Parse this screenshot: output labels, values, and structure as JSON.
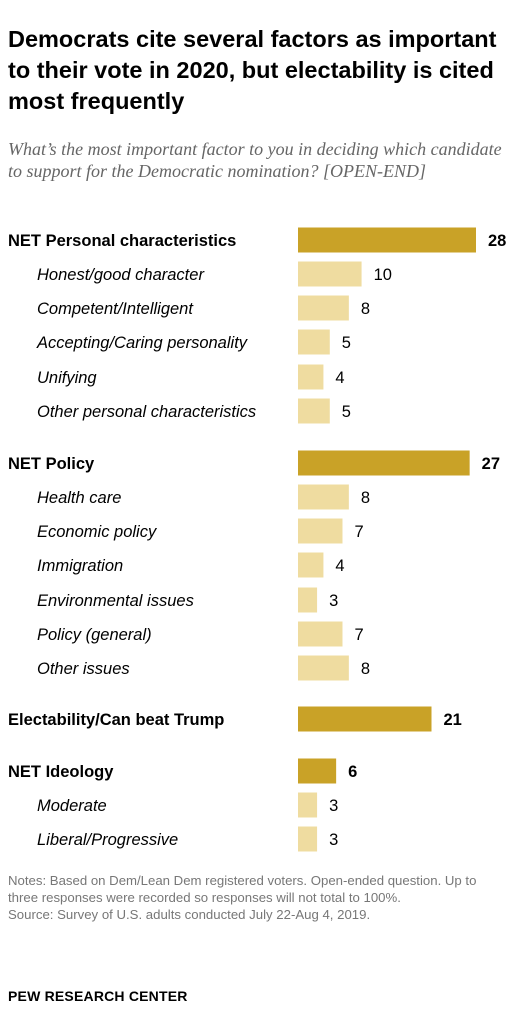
{
  "header": {
    "title": "Democrats cite several factors as important to their vote in 2020, but electability is cited most frequently",
    "subtitle": "What’s the most important factor to you in deciding which candidate to support for the Democratic nomination? [OPEN-END]"
  },
  "notes": {
    "line1": "Notes: Based on Dem/Lean Dem registered voters. Open-ended question. Up to three responses were recorded so responses will not total to 100%.",
    "source": "Source: Survey of U.S. adults conducted July 22-Aug 4, 2019."
  },
  "footer": {
    "org": "PEW RESEARCH CENTER"
  },
  "colors": {
    "net_bar": "#c9a227",
    "sub_bar": "#efdca0",
    "text": "#000000"
  },
  "chart_data": {
    "type": "bar",
    "orientation": "horizontal",
    "xlim": [
      0,
      28
    ],
    "categories": [
      "NET Personal characteristics",
      "Honest/good character",
      "Competent/Intelligent",
      "Accepting/Caring personality",
      "Unifying",
      "Other personal characteristics",
      "NET Policy",
      "Health care",
      "Economic policy",
      "Immigration",
      "Environmental issues",
      "Policy (general)",
      "Other issues",
      "Electability/Can beat Trump",
      "NET Ideology",
      "Moderate",
      "Liberal/Progressive"
    ],
    "values": [
      28,
      10,
      8,
      5,
      4,
      5,
      27,
      8,
      7,
      4,
      3,
      7,
      8,
      21,
      6,
      3,
      3
    ],
    "is_net": [
      true,
      false,
      false,
      false,
      false,
      false,
      true,
      false,
      false,
      false,
      false,
      false,
      false,
      true,
      true,
      false,
      false
    ],
    "labels": [
      "28",
      "10",
      "8",
      "5",
      "4",
      "5",
      "27",
      "8",
      "7",
      "4",
      "3",
      "7",
      "8",
      "21",
      "6",
      "3",
      "3"
    ]
  }
}
